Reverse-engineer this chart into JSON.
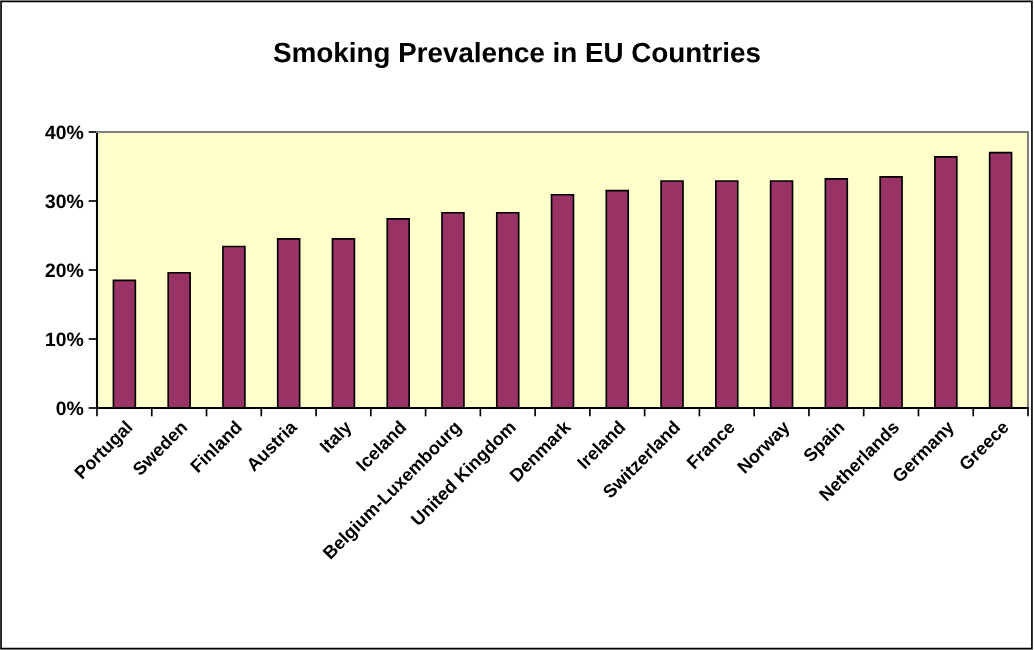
{
  "chart_data": {
    "type": "bar",
    "title": "Smoking Prevalence in EU Countries",
    "categories": [
      "Portugal",
      "Sweden",
      "Finland",
      "Austria",
      "Italy",
      "Iceland",
      "Belgium-Luxembourg",
      "United Kingdom",
      "Denmark",
      "Ireland",
      "Switzerland",
      "France",
      "Norway",
      "Spain",
      "Netherlands",
      "Germany",
      "Greece"
    ],
    "values": [
      18.5,
      19.6,
      23.4,
      24.5,
      24.5,
      27.4,
      28.3,
      28.3,
      30.9,
      31.5,
      32.9,
      32.9,
      32.9,
      33.2,
      33.5,
      36.4,
      37.0
    ],
    "color": "#993366",
    "ylim": [
      0,
      40
    ],
    "yticks": [
      {
        "value": 0,
        "label": "0%"
      },
      {
        "value": 10,
        "label": "10%"
      },
      {
        "value": 20,
        "label": "20%"
      },
      {
        "value": 30,
        "label": "30%"
      },
      {
        "value": 40,
        "label": "40%"
      }
    ],
    "grid": false,
    "legend": false
  }
}
